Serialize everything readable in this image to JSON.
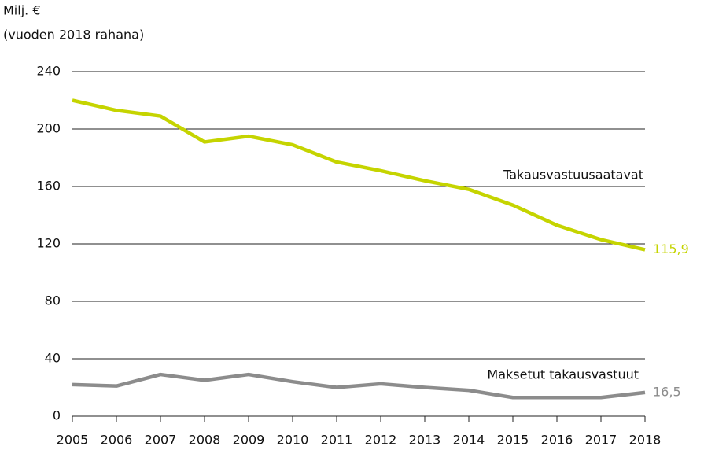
{
  "chart_data": {
    "type": "line",
    "y_label": [
      "Milj. €",
      "(vuoden 2018 rahana)"
    ],
    "categories": [
      "2005",
      "2006",
      "2007",
      "2008",
      "2009",
      "2010",
      "2011",
      "2012",
      "2013",
      "2014",
      "2015",
      "2016",
      "2017",
      "2018"
    ],
    "series": [
      {
        "name": "Takausvastuusaatavat",
        "color": "#c5d400",
        "values": [
          220,
          213,
          209,
          191,
          195,
          189,
          177,
          171,
          164,
          158,
          147,
          133,
          123,
          115.9
        ],
        "value_labels": [
          null,
          null,
          null,
          null,
          null,
          null,
          null,
          null,
          null,
          null,
          null,
          null,
          null,
          "115,9"
        ]
      },
      {
        "name": "Maksetut takausvastuut",
        "color": "#8c8c8c",
        "values": [
          22,
          21,
          29,
          25,
          29,
          24,
          20,
          22.5,
          20,
          18,
          13,
          13,
          13,
          16.5
        ],
        "value_labels": [
          null,
          null,
          null,
          null,
          null,
          null,
          null,
          null,
          null,
          null,
          null,
          null,
          null,
          "16,5"
        ]
      }
    ],
    "ylim": [
      0,
      240
    ],
    "yticks": [
      0,
      40,
      80,
      120,
      160,
      200,
      240
    ],
    "grid": true
  }
}
